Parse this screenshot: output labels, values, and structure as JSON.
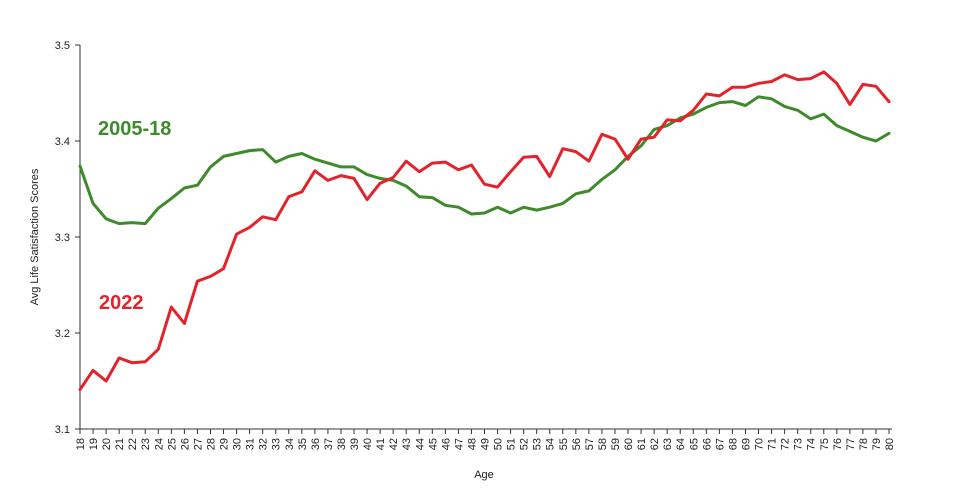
{
  "chart_data": {
    "type": "line",
    "title": "",
    "xlabel": "Age",
    "ylabel": "Avg Life Satisfaction Scores",
    "ylim": [
      3.1,
      3.5
    ],
    "yticks": [
      "3.1",
      "3.2",
      "3.3",
      "3.4",
      "3.5"
    ],
    "grid": false,
    "x": [
      18,
      19,
      20,
      21,
      22,
      23,
      24,
      25,
      26,
      27,
      28,
      29,
      30,
      31,
      32,
      33,
      34,
      35,
      36,
      37,
      38,
      39,
      40,
      41,
      42,
      43,
      44,
      45,
      46,
      47,
      48,
      49,
      50,
      51,
      52,
      53,
      54,
      55,
      56,
      57,
      58,
      59,
      60,
      61,
      62,
      63,
      64,
      65,
      66,
      67,
      68,
      69,
      70,
      71,
      72,
      73,
      74,
      75,
      76,
      77,
      78,
      79,
      80
    ],
    "x_tick_labels": [
      "18",
      "19",
      "20",
      "21",
      "22",
      "23",
      "24",
      "25",
      "26",
      "27",
      "28",
      "29",
      "30",
      "31",
      "32",
      "33",
      "34",
      "35",
      "36",
      "37",
      "38",
      "39",
      "40",
      "41",
      "42",
      "43",
      "44",
      "45",
      "46",
      "47",
      "48",
      "49",
      "50",
      "51",
      "52",
      "53",
      "54",
      "55",
      "56",
      "57",
      "58",
      "59",
      "60",
      "61",
      "62",
      "63",
      "64",
      "65",
      "66",
      "67",
      "68",
      "69",
      "70",
      "71",
      "72",
      "73",
      "74",
      "75",
      "76",
      "77",
      "78",
      "79",
      "80"
    ],
    "series": [
      {
        "name": "2005-18",
        "color": "#3e8a2c",
        "values": [
          3.374,
          3.335,
          3.319,
          3.314,
          3.315,
          3.314,
          3.33,
          3.34,
          3.351,
          3.354,
          3.373,
          3.384,
          3.387,
          3.39,
          3.391,
          3.378,
          3.384,
          3.387,
          3.381,
          3.377,
          3.373,
          3.373,
          3.365,
          3.361,
          3.359,
          3.353,
          3.342,
          3.341,
          3.333,
          3.331,
          3.324,
          3.325,
          3.331,
          3.325,
          3.331,
          3.328,
          3.331,
          3.335,
          3.345,
          3.348,
          3.36,
          3.37,
          3.384,
          3.395,
          3.412,
          3.416,
          3.424,
          3.428,
          3.435,
          3.44,
          3.441,
          3.437,
          3.446,
          3.444,
          3.436,
          3.432,
          3.423,
          3.428,
          3.416,
          3.41,
          3.404,
          3.4,
          3.408
        ]
      },
      {
        "name": "2022",
        "color": "#e3232b",
        "values": [
          3.141,
          3.161,
          3.15,
          3.174,
          3.169,
          3.17,
          3.183,
          3.227,
          3.21,
          3.254,
          3.259,
          3.267,
          3.303,
          3.31,
          3.321,
          3.318,
          3.342,
          3.347,
          3.369,
          3.359,
          3.364,
          3.361,
          3.339,
          3.356,
          3.362,
          3.379,
          3.368,
          3.377,
          3.378,
          3.37,
          3.375,
          3.355,
          3.352,
          3.368,
          3.383,
          3.384,
          3.363,
          3.392,
          3.389,
          3.379,
          3.407,
          3.402,
          3.381,
          3.402,
          3.404,
          3.422,
          3.421,
          3.432,
          3.449,
          3.447,
          3.456,
          3.456,
          3.46,
          3.462,
          3.469,
          3.464,
          3.465,
          3.472,
          3.46,
          3.438,
          3.459,
          3.457,
          3.441
        ]
      }
    ]
  }
}
